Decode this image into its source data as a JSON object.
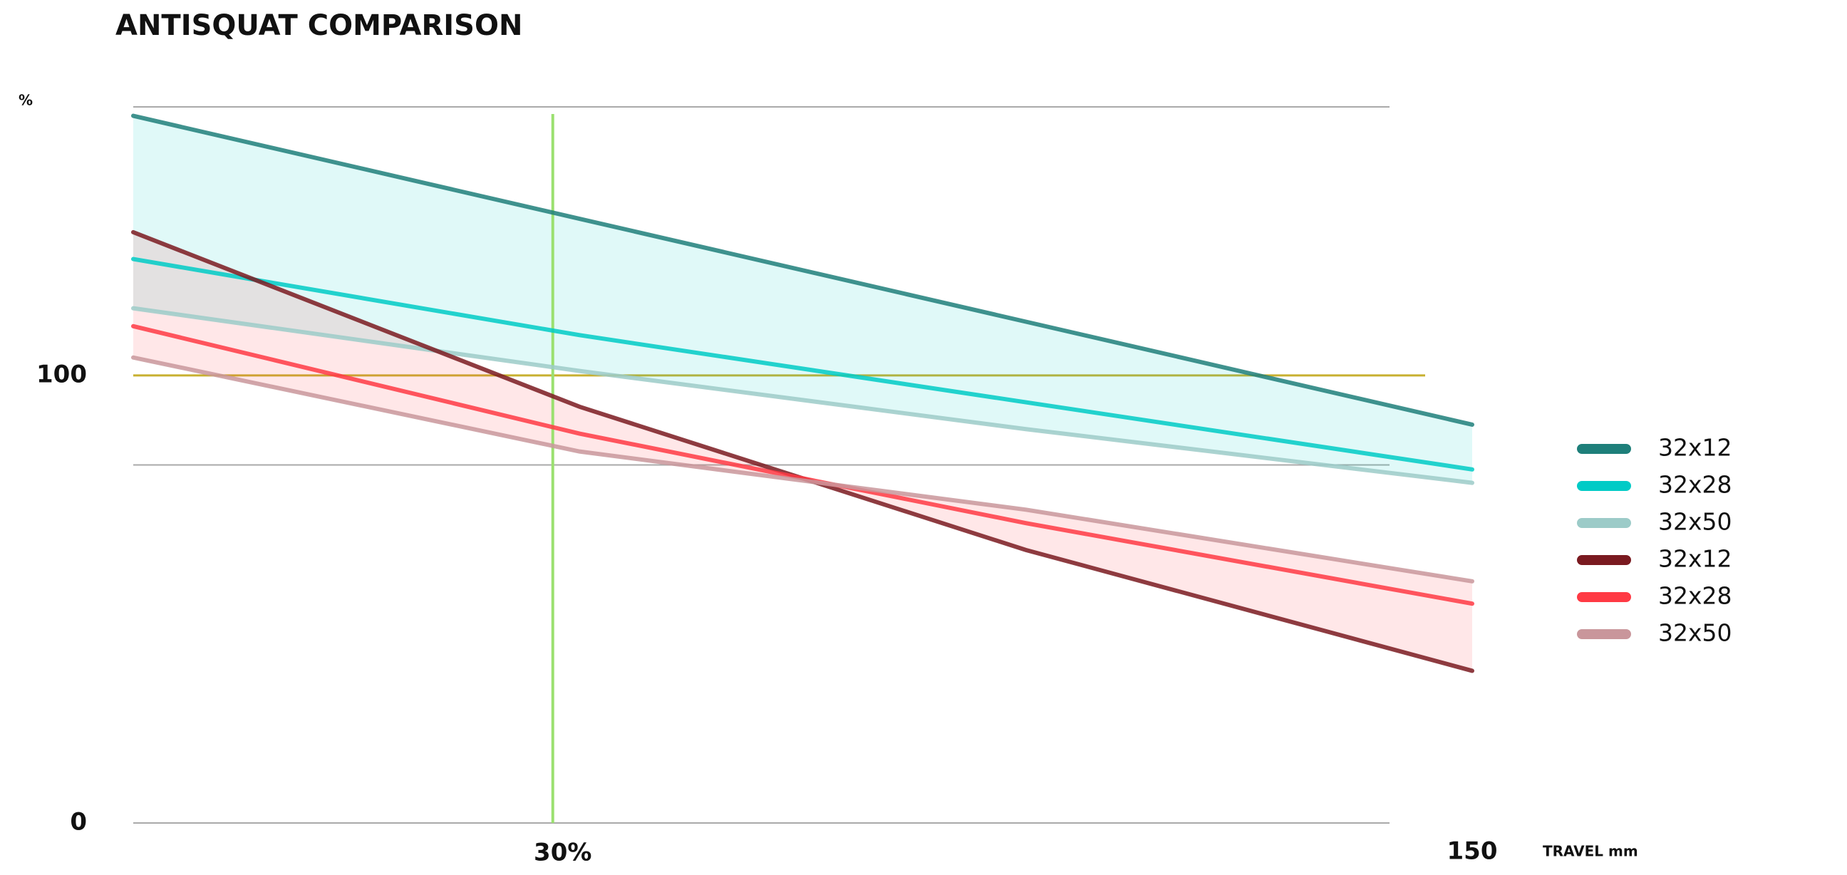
{
  "chart_data": {
    "type": "line",
    "title": "ANTISQUAT COMPARISON",
    "y_label": "%",
    "x_label": "TRAVEL mm",
    "x": [
      0,
      50,
      100,
      150
    ],
    "xlim": [
      0,
      150
    ],
    "xticks": [
      150
    ],
    "ylim": [
      0,
      160
    ],
    "yticks": [
      0,
      100
    ],
    "grid_lines": [
      80,
      160
    ],
    "reference_line": {
      "value": 100,
      "color": "#c8b030"
    },
    "sag_marker": {
      "x": 47,
      "label": "30%",
      "color": "#9be070"
    },
    "series": [
      {
        "name": "32x12",
        "color": "#1e7f7a",
        "values": [
          158,
          135,
          112,
          89
        ]
      },
      {
        "name": "32x28",
        "color": "#00cbc6",
        "values": [
          126,
          109,
          94,
          79
        ]
      },
      {
        "name": "32x50",
        "color": "#9ccbc8",
        "values": [
          115,
          101,
          88,
          76
        ]
      },
      {
        "name": "32x12",
        "color": "#7a1a20",
        "values": [
          132,
          93,
          61,
          34
        ]
      },
      {
        "name": "32x28",
        "color": "#ff3a44",
        "values": [
          111,
          87,
          67,
          49
        ]
      },
      {
        "name": "32x50",
        "color": "#c9969b",
        "values": [
          104,
          83,
          70,
          54
        ]
      }
    ],
    "legend": "right"
  }
}
